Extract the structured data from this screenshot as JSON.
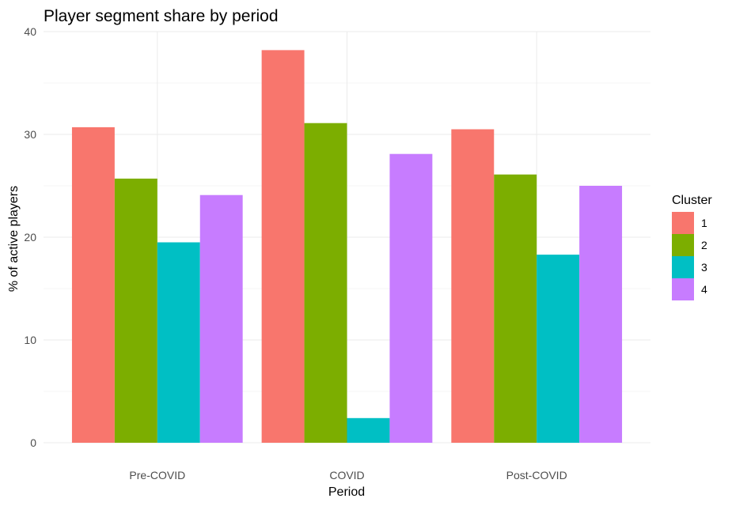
{
  "chart_data": {
    "type": "bar",
    "title": "Player segment share by period",
    "xlabel": "Period",
    "ylabel": "% of active players",
    "categories": [
      "Pre-COVID",
      "COVID",
      "Post-COVID"
    ],
    "series": [
      {
        "name": "1",
        "color": "#F8766D",
        "values": [
          30.7,
          38.2,
          30.5
        ]
      },
      {
        "name": "2",
        "color": "#7CAE00",
        "values": [
          25.7,
          31.1,
          26.1
        ]
      },
      {
        "name": "3",
        "color": "#00BFC4",
        "values": [
          19.5,
          2.4,
          18.3
        ]
      },
      {
        "name": "4",
        "color": "#C77CFF",
        "values": [
          24.1,
          28.1,
          25.0
        ]
      }
    ],
    "yticks": [
      "0",
      "10",
      "20",
      "30",
      "40"
    ],
    "ylim": [
      0,
      40
    ],
    "grid": true,
    "legend": {
      "title": "Cluster",
      "position": "right"
    }
  }
}
